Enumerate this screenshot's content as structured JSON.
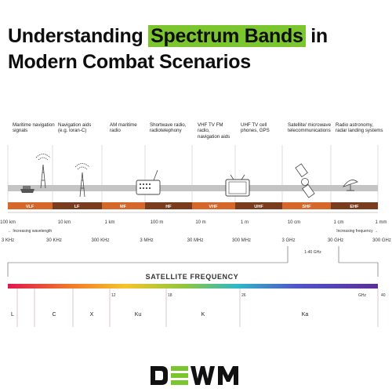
{
  "title": {
    "before": "Understanding ",
    "highlight": "Spectrum Bands",
    "after": " in",
    "line2": "Modern Combat Scenarios"
  },
  "uses": [
    "Maritime navigation signals",
    "Navigation aids (e.g. loran-C)",
    "AM maritime radio",
    "Shortwave radio, radiotelephony",
    "VHF TV FM radio, navigation aids",
    "UHF TV cell phones, GPS",
    "Satellite/ microwave telecommunications",
    "Radio astronomy, radar landing systems"
  ],
  "bands": [
    "VLF",
    "LF",
    "MF",
    "HF",
    "VHF",
    "UHF",
    "SHF",
    "EHF"
  ],
  "wavelengths": [
    "100 km",
    "10 km",
    "1 km",
    "100 m",
    "10 m",
    "1 m",
    "10 cm",
    "1 cm",
    "1 mm"
  ],
  "wavelength_note": "← Increasing wavelength",
  "frequency_note": "Increasing frequency →",
  "frequencies": [
    "3 KHz",
    "30 KHz",
    "300 KHz",
    "3 MHz",
    "30 MHz",
    "300 MHz",
    "3 GHz",
    "30 GHz",
    "300 GHz"
  ],
  "ghz_range": "1-40 GHz",
  "satellite_title": "SATELLITE FREQUENCY",
  "satellite_ticks": [
    "12",
    "18",
    "26",
    "GHz",
    "40"
  ],
  "satellite_bands": [
    "L",
    "C",
    "X",
    "Ku",
    "K",
    "Ka"
  ],
  "logo": "DEWM",
  "colors": {
    "highlight": "#7bc62e",
    "band_dark": "#7a3c1e",
    "band_light": "#d6672a",
    "logo_green": "#7bc62e"
  }
}
